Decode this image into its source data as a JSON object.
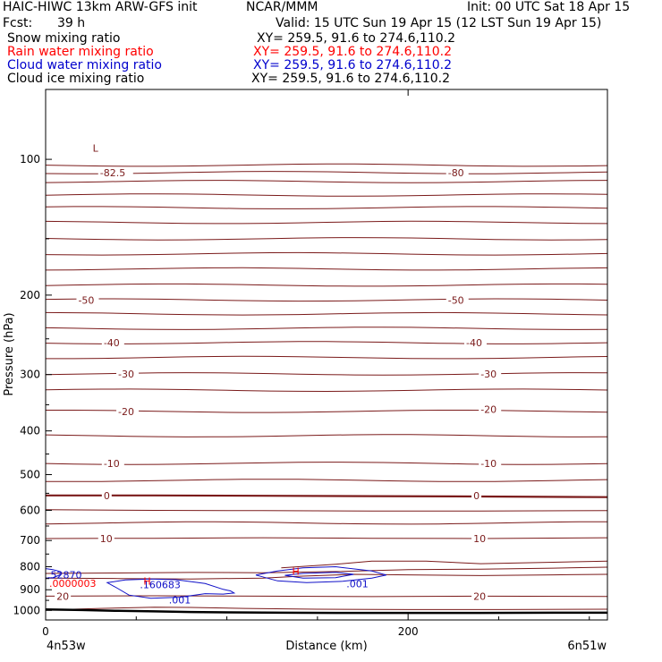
{
  "header": {
    "model": "HAIC-HIWC 13km ARW-GFS init",
    "org": "NCAR/MMM",
    "init": "Init: 00 UTC Sat 18 Apr 15",
    "fcst_label": "Fcst:",
    "fcst_value": "39 h",
    "valid": "Valid: 15 UTC Sun 19 Apr 15 (12 LST Sun 19 Apr 15)"
  },
  "fields": [
    {
      "name": "Snow mixing ratio",
      "xy": "XY= 259.5, 91.6 to 274.6,110.2",
      "color": "#000000"
    },
    {
      "name": "Rain water mixing ratio",
      "xy": "XY= 259.5, 91.6 to 274.6,110.2",
      "color": "#ff0000"
    },
    {
      "name": "Cloud water mixing ratio",
      "xy": "XY= 259.5, 91.6 to 274.6,110.2",
      "color": "#0000cc"
    },
    {
      "name": "Cloud ice mixing ratio",
      "xy": "XY= 259.5, 91.6 to 274.6,110.2",
      "color": "#000000"
    }
  ],
  "colors": {
    "temperature": "#7a1a1a",
    "cloud_water": "#1010c8",
    "rain_water": "#ff0000",
    "terrain": "#000000"
  },
  "chart_data": {
    "type": "line",
    "xlabel": "Distance (km)",
    "ylabel": "Pressure (hPa)",
    "xlim": [
      0,
      310
    ],
    "ylim": [
      1050,
      70
    ],
    "yscale": "log",
    "xticks": [
      0,
      200
    ],
    "yticks": [
      100,
      200,
      300,
      400,
      500,
      600,
      700,
      800,
      900,
      1000
    ],
    "x_start_label": "4n53w",
    "x_end_label": "6n51w",
    "isotherm_labels": [
      {
        "text": "-82.5",
        "x": 30,
        "p": 107
      },
      {
        "text": "-80",
        "x": 222,
        "p": 107
      },
      {
        "text": "-50",
        "x": 18,
        "p": 205
      },
      {
        "text": "-50",
        "x": 222,
        "p": 205
      },
      {
        "text": "-40",
        "x": 32,
        "p": 255
      },
      {
        "text": "-40",
        "x": 232,
        "p": 255
      },
      {
        "text": "-30",
        "x": 40,
        "p": 299
      },
      {
        "text": "-30",
        "x": 240,
        "p": 299
      },
      {
        "text": "-20",
        "x": 40,
        "p": 362
      },
      {
        "text": "-20",
        "x": 240,
        "p": 358
      },
      {
        "text": "-10",
        "x": 32,
        "p": 472
      },
      {
        "text": "-10",
        "x": 240,
        "p": 472
      },
      {
        "text": "0",
        "x": 32,
        "p": 556
      },
      {
        "text": "0",
        "x": 236,
        "p": 556
      },
      {
        "text": "10",
        "x": 30,
        "p": 693
      },
      {
        "text": "10",
        "x": 236,
        "p": 693
      },
      {
        "text": "20",
        "x": 6,
        "p": 930
      },
      {
        "text": "20",
        "x": 236,
        "p": 930
      }
    ],
    "low_marker": {
      "text": "L",
      "x": 26,
      "p": 94
    },
    "annotations": [
      {
        "text": ".52870",
        "x": 1,
        "p": 834,
        "color": "#1010c8"
      },
      {
        "text": ".0000003",
        "x": 2,
        "p": 871,
        "color": "#ff0000"
      },
      {
        "text": ".160683",
        "x": 52,
        "p": 876,
        "color": "#1010c8"
      },
      {
        "text": ".001",
        "x": 68,
        "p": 947,
        "color": "#1010c8"
      },
      {
        "text": ".001",
        "x": 166,
        "p": 873,
        "color": "#1010c8"
      },
      {
        "text": "H",
        "x": 54,
        "p": 860,
        "color": "#ff0000"
      },
      {
        "text": "H",
        "x": 136,
        "p": 818,
        "color": "#ff0000"
      }
    ],
    "surface_pressure": {
      "x": [
        0,
        20,
        40,
        60,
        80,
        100,
        130,
        160,
        200,
        240,
        280,
        310
      ],
      "p": [
        995,
        998,
        1002,
        1005,
        1008,
        1010,
        1012,
        1013,
        1013,
        1013,
        1012,
        1012
      ]
    }
  }
}
